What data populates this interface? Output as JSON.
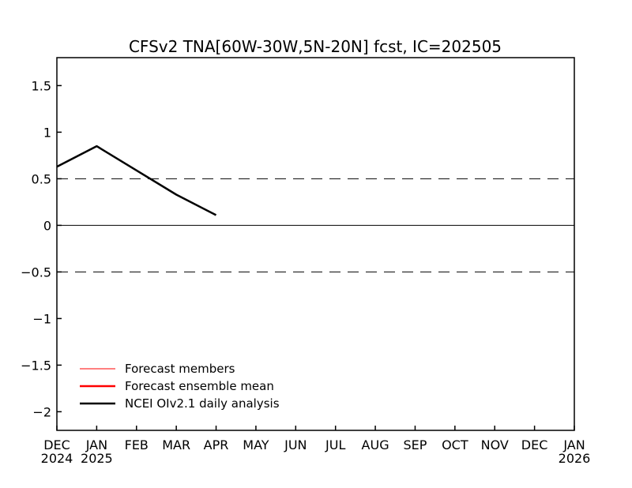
{
  "chart_data": {
    "type": "line",
    "title": "CFSv2 TNA[60W-30W,5N-20N] fcst, IC=202505",
    "xlabel": "",
    "ylabel": "",
    "x_ticks": [
      {
        "month": "DEC",
        "year": "2024"
      },
      {
        "month": "JAN",
        "year": "2025"
      },
      {
        "month": "FEB",
        "year": ""
      },
      {
        "month": "MAR",
        "year": ""
      },
      {
        "month": "APR",
        "year": ""
      },
      {
        "month": "MAY",
        "year": ""
      },
      {
        "month": "JUN",
        "year": ""
      },
      {
        "month": "JUL",
        "year": ""
      },
      {
        "month": "AUG",
        "year": ""
      },
      {
        "month": "SEP",
        "year": ""
      },
      {
        "month": "OCT",
        "year": ""
      },
      {
        "month": "NOV",
        "year": ""
      },
      {
        "month": "DEC",
        "year": ""
      },
      {
        "month": "JAN",
        "year": "2026"
      }
    ],
    "xlim": [
      "2024-12",
      "2026-01"
    ],
    "ylim": [
      -2.2,
      1.8
    ],
    "y_ticks": [
      "1.5",
      "1",
      "0.5",
      "0",
      "-0.5",
      "-1",
      "-1.5",
      "-2"
    ],
    "reference_lines": [
      {
        "y": 0.5,
        "style": "dashed"
      },
      {
        "y": 0,
        "style": "solid"
      },
      {
        "y": -0.5,
        "style": "dashed"
      }
    ],
    "series": [
      {
        "name": "Forecast members",
        "color": "#ff0000",
        "values": []
      },
      {
        "name": "Forecast ensemble mean",
        "color": "#ff0000",
        "values": []
      },
      {
        "name": "NCEI OIv2.1 daily analysis",
        "color": "#000000",
        "x": [
          "2024-12",
          "2025-01",
          "2025-02",
          "2025-03",
          "2025-04"
        ],
        "values": [
          0.63,
          0.85,
          0.59,
          0.33,
          0.11
        ]
      }
    ],
    "legend": {
      "placement": "bottom-left",
      "entries": [
        "Forecast members",
        "Forecast ensemble mean",
        "NCEI OIv2.1 daily analysis"
      ]
    },
    "grid": false
  }
}
